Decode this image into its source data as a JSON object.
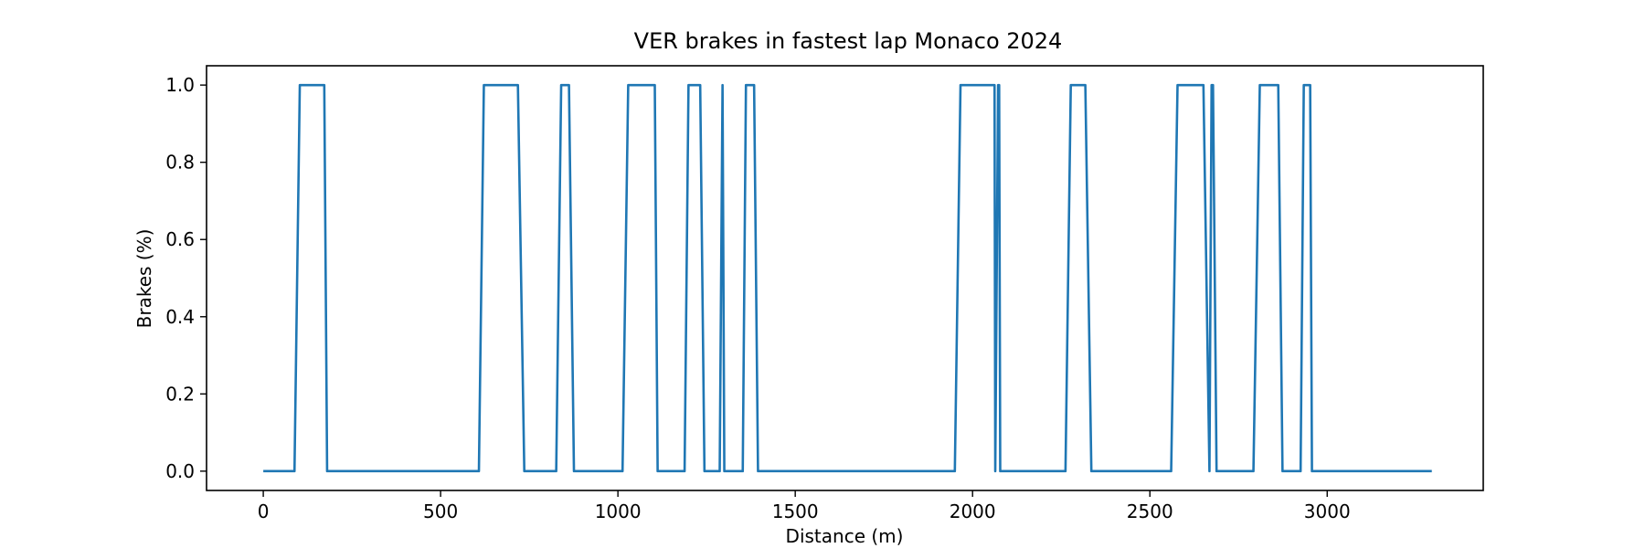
{
  "chart_data": {
    "type": "line",
    "title": "VER brakes in fastest lap Monaco 2024",
    "xlabel": "Distance (m)",
    "ylabel": "Brakes (%)",
    "xlim": [
      -160,
      3440
    ],
    "ylim": [
      -0.05,
      1.05
    ],
    "x_ticks": [
      0,
      500,
      1000,
      1500,
      2000,
      2500,
      3000
    ],
    "y_ticks": [
      0.0,
      0.2,
      0.4,
      0.6,
      0.8,
      1.0
    ],
    "x_tick_labels": [
      "0",
      "500",
      "1000",
      "1500",
      "2000",
      "2500",
      "3000"
    ],
    "y_tick_labels": [
      "0.0",
      "0.2",
      "0.4",
      "0.6",
      "0.8",
      "1.0"
    ],
    "grid": false,
    "color": "#1f77b4",
    "series": [
      {
        "x": [
          0,
          88,
          103,
          172,
          180,
          608,
          622,
          718,
          736,
          826,
          840,
          862,
          876,
          1013,
          1029,
          1104,
          1112,
          1188,
          1199,
          1232,
          1244,
          1287,
          1295,
          1300,
          1352,
          1361,
          1384,
          1395,
          1950,
          1966,
          2062,
          2064,
          2072,
          2075,
          2078,
          2262,
          2277,
          2318,
          2335,
          2560,
          2578,
          2651,
          2668,
          2674,
          2678,
          2688,
          2792,
          2810,
          2862,
          2874,
          2925,
          2934,
          2952,
          2957,
          3295
        ],
        "y": [
          0,
          0,
          1,
          1,
          0,
          0,
          1,
          1,
          0,
          0,
          1,
          1,
          0,
          0,
          1,
          1,
          0,
          0,
          1,
          1,
          0,
          0,
          1,
          0,
          0,
          1,
          1,
          0,
          0,
          1,
          1,
          0,
          1,
          1,
          0,
          0,
          1,
          1,
          0,
          0,
          1,
          1,
          0,
          1,
          1,
          0,
          0,
          1,
          1,
          0,
          0,
          1,
          1,
          0,
          0
        ]
      }
    ]
  }
}
